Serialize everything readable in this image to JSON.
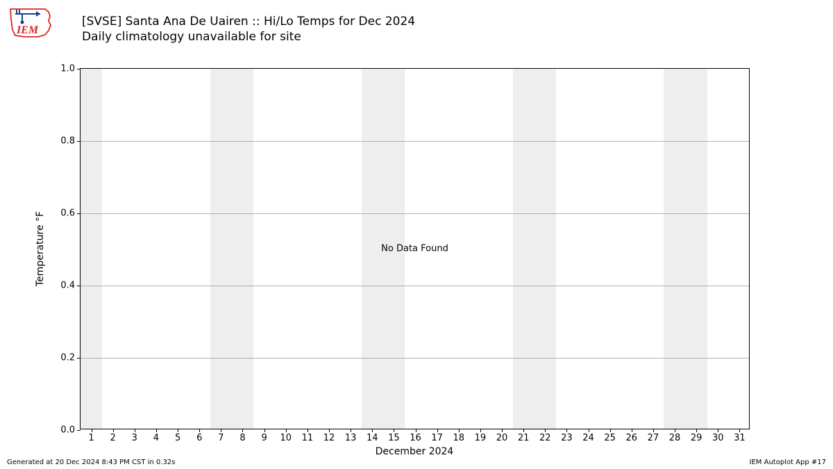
{
  "chart": {
    "type": "line",
    "title_line1": "[SVSE] Santa Ana De Uairen :: Hi/Lo Temps for Dec 2024",
    "title_line2": "Daily climatology unavailable for site",
    "title_fontsize": 17,
    "ylabel": "Temperature °F",
    "xlabel": "December 2024",
    "axis_label_fontsize": 14,
    "tick_fontsize": 13,
    "no_data_text": "No Data Found",
    "background_color": "#ffffff",
    "axis_color": "#000000",
    "grid_color": "#b0b0b0",
    "weekend_fill": "#eeeeee",
    "text_color": "#000000",
    "xlim": [
      0.5,
      31.5
    ],
    "ylim": [
      0.0,
      1.0
    ],
    "yticks": [
      0.0,
      0.2,
      0.4,
      0.6,
      0.8,
      1.0
    ],
    "xticks": [
      1,
      2,
      3,
      4,
      5,
      6,
      7,
      8,
      9,
      10,
      11,
      12,
      13,
      14,
      15,
      16,
      17,
      18,
      19,
      20,
      21,
      22,
      23,
      24,
      25,
      26,
      27,
      28,
      29,
      30,
      31
    ],
    "weekend_days": [
      [
        1,
        1
      ],
      [
        7,
        8
      ],
      [
        14,
        15
      ],
      [
        21,
        22
      ],
      [
        28,
        29
      ]
    ],
    "series": []
  },
  "footer": {
    "left": "Generated at 20 Dec 2024 8:43 PM CST in 0.32s",
    "right": "IEM Autoplot App #17",
    "fontsize": 10
  },
  "logo": {
    "name": "iem-logo",
    "outline_color": "#d8281f",
    "arrow_color": "#1f3a93",
    "text": "IEM"
  }
}
